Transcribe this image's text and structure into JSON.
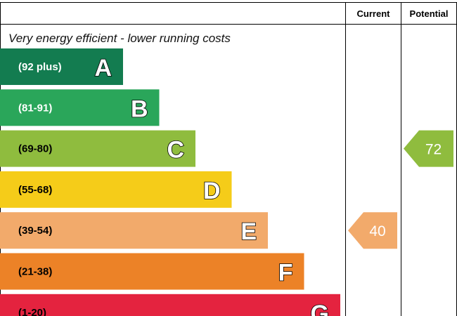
{
  "chart_data": {
    "type": "bar",
    "columns": {
      "current": "Current",
      "potential": "Potential"
    },
    "subtitle": "Very energy efficient - lower running costs",
    "bands": [
      {
        "letter": "A",
        "range": "(92 plus)",
        "color": "#137c50",
        "text_color": "#ffffff"
      },
      {
        "letter": "B",
        "range": "(81-91)",
        "color": "#2aa65a",
        "text_color": "#ffffff"
      },
      {
        "letter": "C",
        "range": "(69-80)",
        "color": "#8fbc3e",
        "text_color": "#000000"
      },
      {
        "letter": "D",
        "range": "(55-68)",
        "color": "#f5cc19",
        "text_color": "#000000"
      },
      {
        "letter": "E",
        "range": "(39-54)",
        "color": "#f2aa6b",
        "text_color": "#000000"
      },
      {
        "letter": "F",
        "range": "(21-38)",
        "color": "#ec8227",
        "text_color": "#000000"
      },
      {
        "letter": "G",
        "range": "(1-20)",
        "color": "#e4233f",
        "text_color": "#000000"
      }
    ],
    "current": {
      "value": 40,
      "band": "E",
      "color": "#f2aa6b"
    },
    "potential": {
      "value": 72,
      "band": "C",
      "color": "#8fbc3e"
    }
  }
}
